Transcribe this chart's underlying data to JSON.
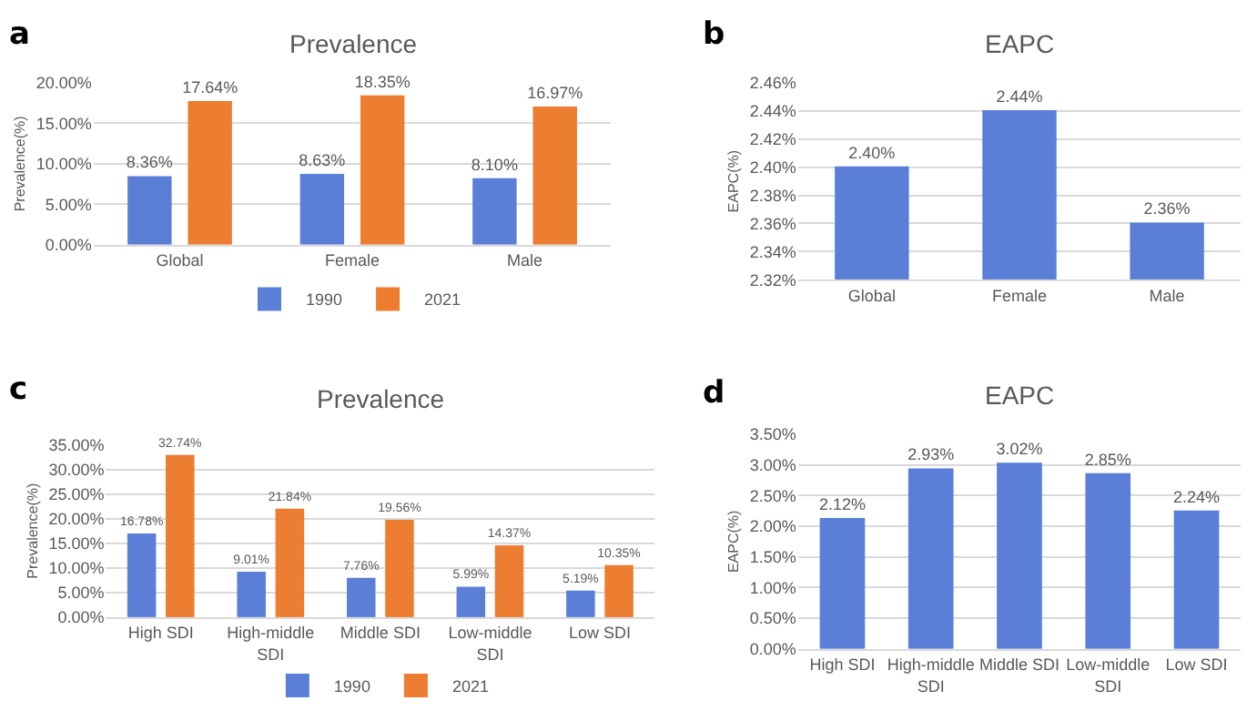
{
  "chart_data": [
    {
      "type": "bar",
      "title": "Prevalence",
      "ylabel": "Prevalence(%)",
      "annotations": [
        "a"
      ],
      "categories": [
        "Global",
        "Female",
        "Male"
      ],
      "series": [
        {
          "name": "1990",
          "color": "#5b7fd6",
          "values": [
            8.36,
            8.63,
            8.1
          ],
          "value_labels": [
            "8.36%",
            "8.63%",
            "8.10%"
          ]
        },
        {
          "name": "2021",
          "color": "#ed7d31",
          "values": [
            17.64,
            18.35,
            16.97
          ],
          "value_labels": [
            "17.64%",
            "18.35%",
            "16.97%"
          ]
        }
      ],
      "ylim": [
        0,
        20
      ],
      "yticks": [
        {
          "value": 0,
          "label": "0.00%"
        },
        {
          "value": 5,
          "label": "5.00%"
        },
        {
          "value": 10,
          "label": "10.00%"
        },
        {
          "value": 15,
          "label": "15.00%"
        },
        {
          "value": 20,
          "label": "20.00%"
        }
      ],
      "grid": "y",
      "legend": "bottom"
    },
    {
      "type": "bar",
      "title": "EAPC",
      "ylabel": "EAPC(%)",
      "annotations": [
        "b"
      ],
      "categories": [
        "Global",
        "Female",
        "Male"
      ],
      "series": [
        {
          "color": "#5b7fd6",
          "values": [
            2.4,
            2.44,
            2.36
          ],
          "value_labels": [
            "2.40%",
            "2.44%",
            "2.36%"
          ]
        }
      ],
      "ylim": [
        2.32,
        2.46
      ],
      "yticks": [
        {
          "value": 2.32,
          "label": "2.32%"
        },
        {
          "value": 2.34,
          "label": "2.34%"
        },
        {
          "value": 2.36,
          "label": "2.36%"
        },
        {
          "value": 2.38,
          "label": "2.38%"
        },
        {
          "value": 2.4,
          "label": "2.40%"
        },
        {
          "value": 2.42,
          "label": "2.42%"
        },
        {
          "value": 2.44,
          "label": "2.44%"
        },
        {
          "value": 2.46,
          "label": "2.46%"
        }
      ],
      "grid": "y"
    },
    {
      "type": "bar",
      "title": "Prevalence",
      "ylabel": "Prevalence(%)",
      "annotations": [
        "c"
      ],
      "categories": [
        "High SDI",
        "High-middle SDI",
        "Middle SDI",
        "Low-middle SDI",
        "Low SDI"
      ],
      "series": [
        {
          "name": "1990",
          "color": "#5b7fd6",
          "values": [
            16.78,
            9.01,
            7.76,
            5.99,
            5.19
          ],
          "value_labels": [
            "16.78%",
            "9.01%",
            "7.76%",
            "5.99%",
            "5.19%"
          ]
        },
        {
          "name": "2021",
          "color": "#ed7d31",
          "values": [
            32.74,
            21.84,
            19.56,
            14.37,
            10.35
          ],
          "value_labels": [
            "32.74%",
            "21.84%",
            "19.56%",
            "14.37%",
            "10.35%"
          ]
        }
      ],
      "ylim": [
        0,
        35
      ],
      "yticks": [
        {
          "value": 0,
          "label": "0.00%"
        },
        {
          "value": 5,
          "label": "5.00%"
        },
        {
          "value": 10,
          "label": "10.00%"
        },
        {
          "value": 15,
          "label": "15.00%"
        },
        {
          "value": 20,
          "label": "20.00%"
        },
        {
          "value": 25,
          "label": "25.00%"
        },
        {
          "value": 30,
          "label": "30.00%"
        },
        {
          "value": 35,
          "label": "35.00%"
        }
      ],
      "grid": "y",
      "legend": "bottom"
    },
    {
      "type": "bar",
      "title": "EAPC",
      "ylabel": "EAPC(%)",
      "annotations": [
        "d"
      ],
      "categories": [
        "High SDI",
        "High-middle SDI",
        "Middle SDI",
        "Low-middle SDI",
        "Low SDI"
      ],
      "series": [
        {
          "color": "#5b7fd6",
          "values": [
            2.12,
            2.93,
            3.02,
            2.85,
            2.24
          ],
          "value_labels": [
            "2.12%",
            "2.93%",
            "3.02%",
            "2.85%",
            "2.24%"
          ]
        }
      ],
      "ylim": [
        0,
        3.5
      ],
      "yticks": [
        {
          "value": 0,
          "label": "0.00%"
        },
        {
          "value": 0.5,
          "label": "0.50%"
        },
        {
          "value": 1,
          "label": "1.00%"
        },
        {
          "value": 1.5,
          "label": "1.50%"
        },
        {
          "value": 2,
          "label": "2.00%"
        },
        {
          "value": 2.5,
          "label": "2.50%"
        },
        {
          "value": 3,
          "label": "3.00%"
        },
        {
          "value": 3.5,
          "label": "3.50%"
        }
      ],
      "grid": "y"
    }
  ]
}
